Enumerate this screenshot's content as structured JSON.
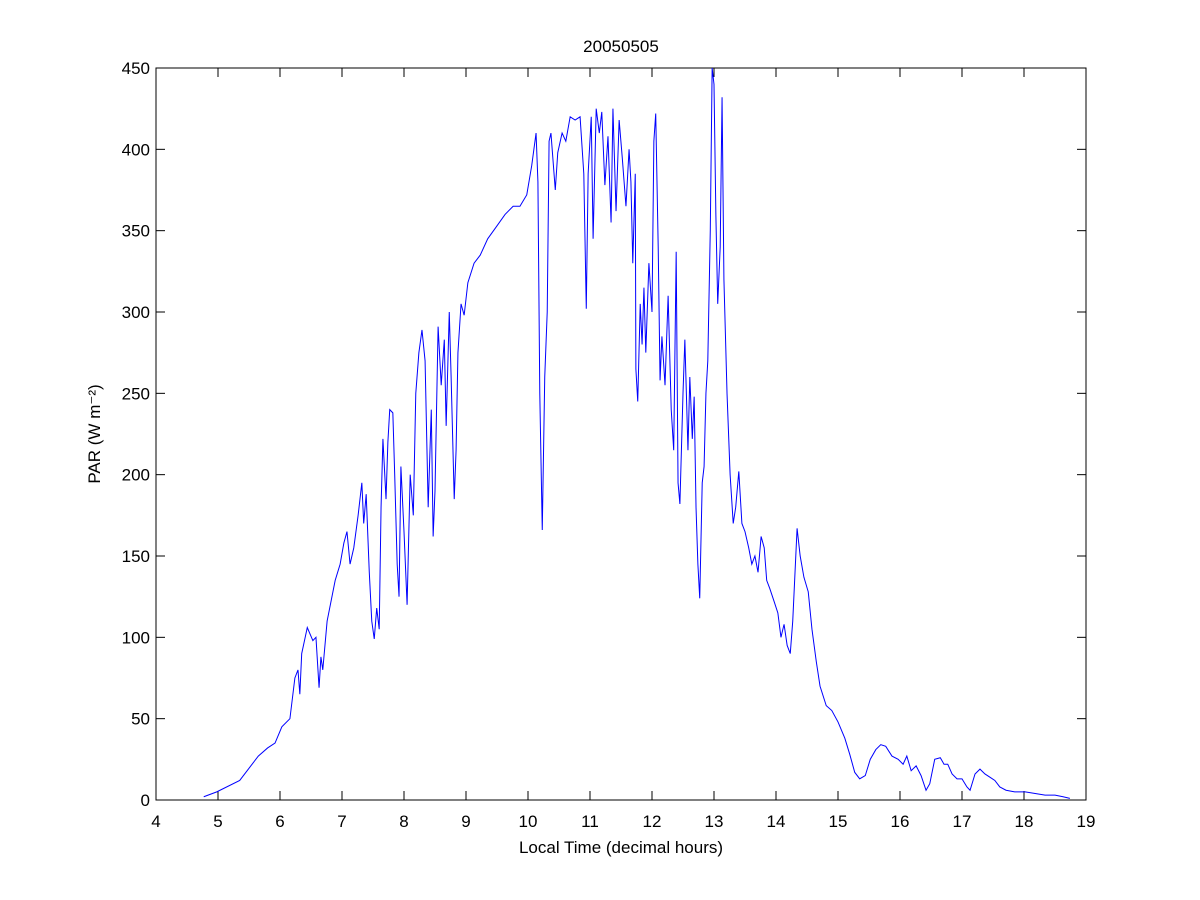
{
  "chart_data": {
    "type": "line",
    "title": "20050505",
    "x_label": "Local Time (decimal hours)",
    "y_label": "PAR (W m⁻²)",
    "xlim": [
      4,
      19
    ],
    "ylim": [
      0,
      450
    ],
    "xticks": [
      4,
      5,
      6,
      7,
      8,
      9,
      10,
      11,
      12,
      13,
      14,
      15,
      16,
      17,
      18,
      19
    ],
    "yticks": [
      0,
      50,
      100,
      150,
      200,
      250,
      300,
      350,
      400,
      450
    ],
    "grid": false,
    "series": [
      {
        "color": "#0000ff",
        "x": [
          4.77,
          4.98,
          5.35,
          5.65,
          5.8,
          5.92,
          6.03,
          6.16,
          6.24,
          6.29,
          6.32,
          6.35,
          6.44,
          6.53,
          6.58,
          6.63,
          6.66,
          6.69,
          6.76,
          6.89,
          6.97,
          7.03,
          7.08,
          7.13,
          7.19,
          7.26,
          7.32,
          7.35,
          7.39,
          7.44,
          7.48,
          7.52,
          7.56,
          7.6,
          7.63,
          7.66,
          7.71,
          7.74,
          7.77,
          7.82,
          7.85,
          7.89,
          7.92,
          7.95,
          8.0,
          8.05,
          8.1,
          8.15,
          8.19,
          8.24,
          8.29,
          8.34,
          8.39,
          8.44,
          8.47,
          8.5,
          8.55,
          8.6,
          8.65,
          8.68,
          8.73,
          8.76,
          8.81,
          8.84,
          8.87,
          8.92,
          8.97,
          9.03,
          9.13,
          9.23,
          9.35,
          9.5,
          9.63,
          9.76,
          9.87,
          9.98,
          10.06,
          10.13,
          10.16,
          10.19,
          10.23,
          10.27,
          10.31,
          10.34,
          10.37,
          10.44,
          10.48,
          10.55,
          10.61,
          10.68,
          10.76,
          10.84,
          10.9,
          10.94,
          10.97,
          11.02,
          11.05,
          11.1,
          11.15,
          11.19,
          11.24,
          11.29,
          11.34,
          11.37,
          11.42,
          11.47,
          11.52,
          11.58,
          11.63,
          11.66,
          11.69,
          11.73,
          11.74,
          11.77,
          11.81,
          11.84,
          11.87,
          11.9,
          11.95,
          12.0,
          12.03,
          12.06,
          12.1,
          12.13,
          12.16,
          12.21,
          12.26,
          12.31,
          12.35,
          12.39,
          12.42,
          12.45,
          12.5,
          12.53,
          12.58,
          12.61,
          12.65,
          12.68,
          12.71,
          12.74,
          12.77,
          12.81,
          12.84,
          12.87,
          12.9,
          12.94,
          12.97,
          13.0,
          13.03,
          13.06,
          13.1,
          13.13,
          13.16,
          13.21,
          13.26,
          13.31,
          13.35,
          13.4,
          13.45,
          13.5,
          13.56,
          13.61,
          13.66,
          13.71,
          13.76,
          13.81,
          13.85,
          13.9,
          13.97,
          14.03,
          14.08,
          14.13,
          14.18,
          14.23,
          14.27,
          14.34,
          14.39,
          14.45,
          14.52,
          14.58,
          14.65,
          14.71,
          14.81,
          14.9,
          15.0,
          15.11,
          15.19,
          15.27,
          15.35,
          15.44,
          15.52,
          15.61,
          15.69,
          15.77,
          15.87,
          15.97,
          16.05,
          16.11,
          16.18,
          16.26,
          16.34,
          16.42,
          16.48,
          16.56,
          16.65,
          16.71,
          16.77,
          16.84,
          16.92,
          17.0,
          17.08,
          17.13,
          17.21,
          17.29,
          17.37,
          17.45,
          17.53,
          17.61,
          17.71,
          17.85,
          18.02,
          18.18,
          18.34,
          18.5,
          18.63,
          18.74
        ],
        "values": [
          2,
          5,
          12,
          27,
          32,
          35,
          45,
          50,
          75,
          80,
          65,
          90,
          106,
          98,
          100,
          69,
          88,
          80,
          110,
          135,
          145,
          158,
          165,
          145,
          155,
          175,
          195,
          170,
          188,
          140,
          110,
          99,
          118,
          105,
          180,
          222,
          185,
          220,
          240,
          238,
          200,
          145,
          125,
          205,
          165,
          120,
          200,
          175,
          250,
          275,
          289,
          270,
          180,
          240,
          162,
          190,
          291,
          255,
          283,
          230,
          300,
          260,
          185,
          215,
          275,
          305,
          298,
          318,
          330,
          335,
          345,
          353,
          360,
          365,
          365,
          372,
          390,
          410,
          380,
          250,
          166,
          260,
          300,
          405,
          410,
          375,
          398,
          410,
          405,
          420,
          418,
          420,
          385,
          302,
          385,
          420,
          345,
          425,
          410,
          423,
          378,
          408,
          355,
          425,
          362,
          418,
          395,
          365,
          400,
          380,
          330,
          385,
          265,
          245,
          305,
          280,
          315,
          275,
          330,
          300,
          405,
          422,
          340,
          258,
          285,
          255,
          310,
          240,
          215,
          337,
          195,
          182,
          250,
          283,
          215,
          260,
          222,
          248,
          180,
          145,
          124,
          195,
          205,
          250,
          270,
          350,
          450,
          440,
          360,
          305,
          340,
          432,
          320,
          250,
          200,
          170,
          180,
          202,
          170,
          165,
          155,
          145,
          150,
          140,
          162,
          155,
          135,
          130,
          122,
          115,
          100,
          108,
          95,
          90,
          110,
          167,
          150,
          137,
          128,
          105,
          85,
          70,
          58,
          55,
          48,
          38,
          28,
          17,
          13,
          15,
          25,
          31,
          34,
          33,
          27,
          25,
          22,
          27,
          18,
          21,
          15,
          6,
          10,
          25,
          26,
          22,
          22,
          16,
          13,
          13,
          8,
          6,
          16,
          19,
          16,
          14,
          12,
          8,
          6,
          5,
          5,
          4,
          3,
          3,
          2,
          1
        ]
      }
    ]
  }
}
